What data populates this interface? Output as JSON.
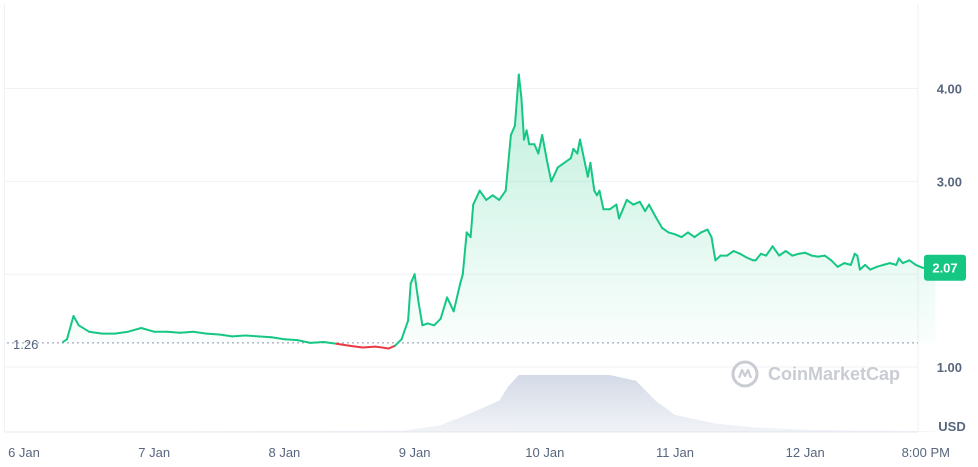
{
  "chart_data": {
    "type": "line",
    "x_labels": [
      "6 Jan",
      "7 Jan",
      "8 Jan",
      "9 Jan",
      "10 Jan",
      "11 Jan",
      "12 Jan",
      "8:00 PM"
    ],
    "y_ticks": [
      "1.00",
      "3.00",
      "4.00"
    ],
    "y_unit": "USD",
    "ylim": [
      0.3,
      4.9
    ],
    "x_range": [
      0,
      7
    ],
    "baseline": {
      "value": 1.26,
      "label": "1.26"
    },
    "current": {
      "value": 2.07,
      "label": "2.07"
    },
    "grid": true,
    "series": [
      {
        "values": [
          [
            0.3,
            1.27
          ],
          [
            0.33,
            1.3
          ],
          [
            0.38,
            1.55
          ],
          [
            0.42,
            1.45
          ],
          [
            0.5,
            1.38
          ],
          [
            0.6,
            1.36
          ],
          [
            0.7,
            1.36
          ],
          [
            0.8,
            1.38
          ],
          [
            0.9,
            1.42
          ],
          [
            1.0,
            1.38
          ],
          [
            1.1,
            1.38
          ],
          [
            1.2,
            1.37
          ],
          [
            1.3,
            1.38
          ],
          [
            1.4,
            1.36
          ],
          [
            1.5,
            1.35
          ],
          [
            1.6,
            1.33
          ],
          [
            1.7,
            1.34
          ],
          [
            1.8,
            1.33
          ],
          [
            1.9,
            1.32
          ],
          [
            2.0,
            1.3
          ],
          [
            2.1,
            1.29
          ],
          [
            2.2,
            1.26
          ],
          [
            2.3,
            1.27
          ],
          [
            2.4,
            1.25
          ],
          [
            2.5,
            1.23
          ],
          [
            2.6,
            1.21
          ],
          [
            2.7,
            1.22
          ],
          [
            2.8,
            1.2
          ],
          [
            2.85,
            1.23
          ],
          [
            2.9,
            1.3
          ],
          [
            2.95,
            1.5
          ],
          [
            2.97,
            1.9
          ],
          [
            3.0,
            2.0
          ],
          [
            3.03,
            1.7
          ],
          [
            3.06,
            1.45
          ],
          [
            3.1,
            1.47
          ],
          [
            3.15,
            1.45
          ],
          [
            3.2,
            1.52
          ],
          [
            3.25,
            1.75
          ],
          [
            3.3,
            1.6
          ],
          [
            3.35,
            1.9
          ],
          [
            3.37,
            2.0
          ],
          [
            3.4,
            2.45
          ],
          [
            3.43,
            2.4
          ],
          [
            3.45,
            2.75
          ],
          [
            3.5,
            2.9
          ],
          [
            3.55,
            2.8
          ],
          [
            3.6,
            2.85
          ],
          [
            3.65,
            2.8
          ],
          [
            3.7,
            2.9
          ],
          [
            3.72,
            3.2
          ],
          [
            3.74,
            3.5
          ],
          [
            3.77,
            3.6
          ],
          [
            3.8,
            4.15
          ],
          [
            3.82,
            3.9
          ],
          [
            3.84,
            3.45
          ],
          [
            3.86,
            3.55
          ],
          [
            3.88,
            3.4
          ],
          [
            3.92,
            3.4
          ],
          [
            3.95,
            3.3
          ],
          [
            3.98,
            3.5
          ],
          [
            4.0,
            3.35
          ],
          [
            4.02,
            3.2
          ],
          [
            4.05,
            3.0
          ],
          [
            4.1,
            3.15
          ],
          [
            4.15,
            3.2
          ],
          [
            4.2,
            3.25
          ],
          [
            4.22,
            3.35
          ],
          [
            4.25,
            3.3
          ],
          [
            4.27,
            3.45
          ],
          [
            4.3,
            3.25
          ],
          [
            4.33,
            3.05
          ],
          [
            4.35,
            3.2
          ],
          [
            4.38,
            2.9
          ],
          [
            4.4,
            2.85
          ],
          [
            4.42,
            2.9
          ],
          [
            4.45,
            2.7
          ],
          [
            4.5,
            2.7
          ],
          [
            4.55,
            2.75
          ],
          [
            4.57,
            2.6
          ],
          [
            4.6,
            2.7
          ],
          [
            4.63,
            2.8
          ],
          [
            4.68,
            2.75
          ],
          [
            4.73,
            2.78
          ],
          [
            4.77,
            2.68
          ],
          [
            4.8,
            2.75
          ],
          [
            4.85,
            2.62
          ],
          [
            4.9,
            2.5
          ],
          [
            4.95,
            2.45
          ],
          [
            5.0,
            2.43
          ],
          [
            5.05,
            2.4
          ],
          [
            5.1,
            2.45
          ],
          [
            5.15,
            2.4
          ],
          [
            5.2,
            2.45
          ],
          [
            5.25,
            2.48
          ],
          [
            5.28,
            2.4
          ],
          [
            5.31,
            2.15
          ],
          [
            5.35,
            2.2
          ],
          [
            5.4,
            2.2
          ],
          [
            5.45,
            2.25
          ],
          [
            5.5,
            2.22
          ],
          [
            5.55,
            2.18
          ],
          [
            5.6,
            2.15
          ],
          [
            5.62,
            2.15
          ],
          [
            5.66,
            2.22
          ],
          [
            5.7,
            2.2
          ],
          [
            5.75,
            2.3
          ],
          [
            5.8,
            2.2
          ],
          [
            5.85,
            2.25
          ],
          [
            5.9,
            2.2
          ],
          [
            5.95,
            2.22
          ],
          [
            6.0,
            2.23
          ],
          [
            6.05,
            2.2
          ],
          [
            6.1,
            2.19
          ],
          [
            6.15,
            2.2
          ],
          [
            6.2,
            2.15
          ],
          [
            6.25,
            2.08
          ],
          [
            6.3,
            2.12
          ],
          [
            6.35,
            2.1
          ],
          [
            6.38,
            2.22
          ],
          [
            6.4,
            2.2
          ],
          [
            6.42,
            2.05
          ],
          [
            6.46,
            2.1
          ],
          [
            6.5,
            2.05
          ],
          [
            6.55,
            2.08
          ],
          [
            6.6,
            2.1
          ],
          [
            6.65,
            2.12
          ],
          [
            6.7,
            2.1
          ],
          [
            6.72,
            2.17
          ],
          [
            6.75,
            2.12
          ],
          [
            6.8,
            2.15
          ],
          [
            6.85,
            2.1
          ],
          [
            6.9,
            2.07
          ],
          [
            7.0,
            2.07
          ]
        ]
      }
    ],
    "volume": [
      [
        0.3,
        0.0
      ],
      [
        2.9,
        0.02
      ],
      [
        3.0,
        0.05
      ],
      [
        3.2,
        0.12
      ],
      [
        3.4,
        0.3
      ],
      [
        3.55,
        0.45
      ],
      [
        3.65,
        0.55
      ],
      [
        3.72,
        0.8
      ],
      [
        3.8,
        1.0
      ],
      [
        4.0,
        1.0
      ],
      [
        4.5,
        1.0
      ],
      [
        4.7,
        0.9
      ],
      [
        4.85,
        0.55
      ],
      [
        5.0,
        0.3
      ],
      [
        5.3,
        0.15
      ],
      [
        5.6,
        0.08
      ],
      [
        6.0,
        0.04
      ],
      [
        6.5,
        0.02
      ],
      [
        7.0,
        0.01
      ]
    ],
    "colors": {
      "up": "#16c784",
      "down": "#ea3943",
      "grid": "#eff2f5",
      "tick_text": "#58667e",
      "badge": "#16c784",
      "volume": "#cfd6e4",
      "watermark": "#c9cdd3"
    }
  },
  "watermark": {
    "text": "CoinMarketCap",
    "icon": "coinmarketcap-logo-icon"
  }
}
